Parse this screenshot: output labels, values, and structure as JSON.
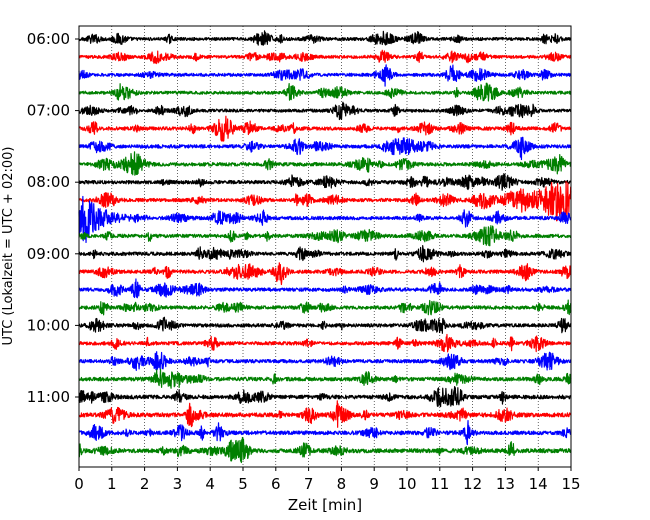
{
  "chart_data": {
    "type": "line",
    "title": "",
    "xlabel": "Zeit  [min]",
    "ylabel": "UTC (Lokalzeit = UTC + 02:00)",
    "xlim": [
      0,
      15
    ],
    "x_ticks": [
      0,
      1,
      2,
      3,
      4,
      5,
      6,
      7,
      8,
      9,
      10,
      11,
      12,
      13,
      14,
      15
    ],
    "x_tick_labels": [
      "0",
      "1",
      "2",
      "3",
      "4",
      "5",
      "6",
      "7",
      "8",
      "9",
      "10",
      "11",
      "12",
      "13",
      "14",
      "15"
    ],
    "y_tick_labels": [
      "06:00",
      "07:00",
      "08:00",
      "09:00",
      "10:00",
      "11:00"
    ],
    "y_tick_trace_index": [
      0,
      4,
      8,
      12,
      16,
      20
    ],
    "vertical_grid": "dotted",
    "legend": "none",
    "trace_colors": [
      "#000000",
      "#ff0000",
      "#0000ff",
      "#008000"
    ],
    "traces": [
      {
        "start": "06:00",
        "color": "#000000",
        "amplitude": 0.45
      },
      {
        "start": "06:15",
        "color": "#ff0000",
        "amplitude": 0.45
      },
      {
        "start": "06:30",
        "color": "#0000ff",
        "amplitude": 0.45
      },
      {
        "start": "06:45",
        "color": "#008000",
        "amplitude": 0.45
      },
      {
        "start": "07:00",
        "color": "#000000",
        "amplitude": 0.45
      },
      {
        "start": "07:15",
        "color": "#ff0000",
        "amplitude": 0.5
      },
      {
        "start": "07:30",
        "color": "#0000ff",
        "amplitude": 0.5
      },
      {
        "start": "07:45",
        "color": "#008000",
        "amplitude": 0.5
      },
      {
        "start": "08:00",
        "color": "#000000",
        "amplitude": 0.5
      },
      {
        "start": "08:15",
        "color": "#ff0000",
        "amplitude": 0.5,
        "event": {
          "x_from": 12.0,
          "x_to": 15,
          "peak_at": 14.8,
          "amplitude": 1.6
        }
      },
      {
        "start": "08:30",
        "color": "#0000ff",
        "amplitude": 0.5,
        "event": {
          "x_from": 0,
          "x_to": 1.6,
          "peak_at": 0.2,
          "amplitude": 1.8
        }
      },
      {
        "start": "08:45",
        "color": "#008000",
        "amplitude": 0.5
      },
      {
        "start": "09:00",
        "color": "#000000",
        "amplitude": 0.5
      },
      {
        "start": "09:15",
        "color": "#ff0000",
        "amplitude": 0.5
      },
      {
        "start": "09:30",
        "color": "#0000ff",
        "amplitude": 0.5
      },
      {
        "start": "09:45",
        "color": "#008000",
        "amplitude": 0.5
      },
      {
        "start": "10:00",
        "color": "#000000",
        "amplitude": 0.5
      },
      {
        "start": "10:15",
        "color": "#ff0000",
        "amplitude": 0.5
      },
      {
        "start": "10:30",
        "color": "#0000ff",
        "amplitude": 0.5
      },
      {
        "start": "10:45",
        "color": "#008000",
        "amplitude": 0.55
      },
      {
        "start": "11:00",
        "color": "#000000",
        "amplitude": 0.55
      },
      {
        "start": "11:15",
        "color": "#ff0000",
        "amplitude": 0.6
      },
      {
        "start": "11:30",
        "color": "#0000ff",
        "amplitude": 0.55
      },
      {
        "start": "11:45",
        "color": "#008000",
        "amplitude": 0.6
      }
    ]
  }
}
